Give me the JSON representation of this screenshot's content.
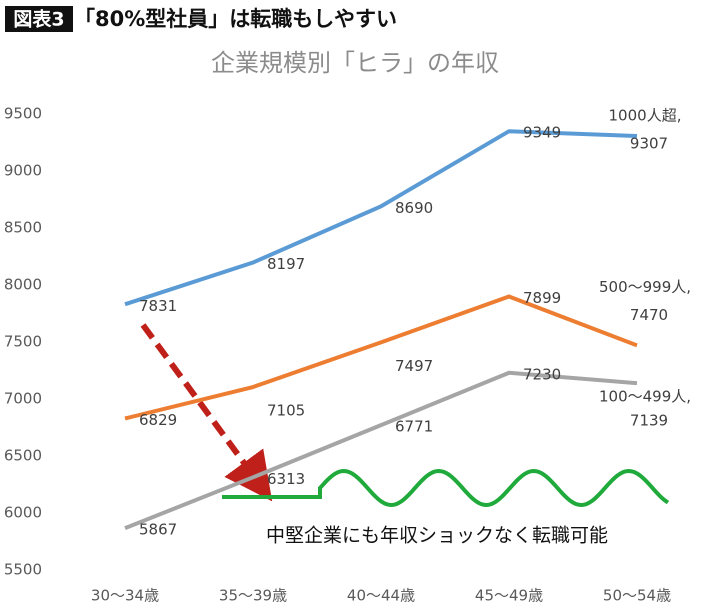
{
  "chart_data": {
    "type": "line",
    "label": "図表3",
    "title": "「80%型社員」は転職もしやすい",
    "subtitle": "企業規模別「ヒラ」の年収",
    "categories": [
      "30〜34歳",
      "35〜39歳",
      "40〜44歳",
      "45〜49歳",
      "50〜54歳"
    ],
    "series": [
      {
        "name": "1000人超,",
        "color": "#5b9bd5",
        "values": [
          7831,
          8197,
          8690,
          9349,
          9307
        ]
      },
      {
        "name": "500〜999人,",
        "color": "#ed7d31",
        "values": [
          6829,
          7105,
          7497,
          7899,
          7470
        ]
      },
      {
        "name": "100〜499人,",
        "color": "#a5a5a5",
        "values": [
          5867,
          6313,
          6771,
          7230,
          7139
        ]
      }
    ],
    "ylim": [
      5500,
      9500
    ],
    "yticks": [
      5500,
      6000,
      6500,
      7000,
      7500,
      8000,
      8500,
      9000,
      9500
    ],
    "grid": false,
    "annotations": [
      "中堅企業にも年収ショックなく転職可能"
    ]
  }
}
